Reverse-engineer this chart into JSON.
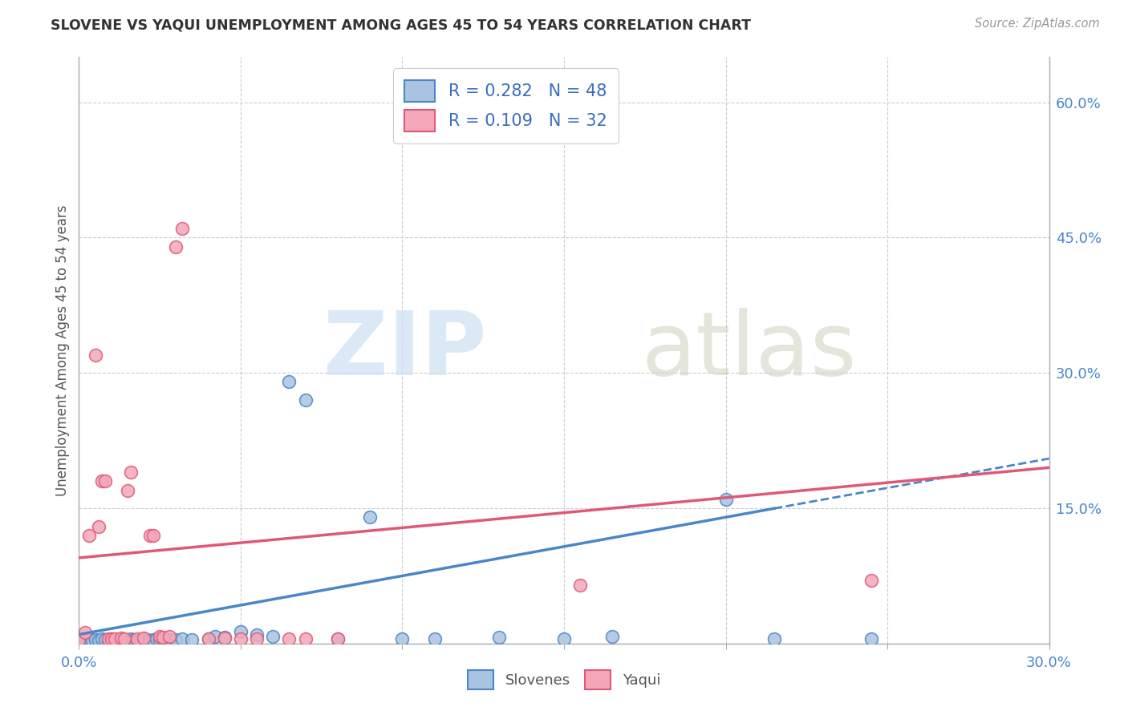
{
  "title": "SLOVENE VS YAQUI UNEMPLOYMENT AMONG AGES 45 TO 54 YEARS CORRELATION CHART",
  "source": "Source: ZipAtlas.com",
  "ylabel": "Unemployment Among Ages 45 to 54 years",
  "xlim": [
    0.0,
    0.3
  ],
  "ylim": [
    0.0,
    0.65
  ],
  "xticks": [
    0.0,
    0.05,
    0.1,
    0.15,
    0.2,
    0.25,
    0.3
  ],
  "xticklabels": [
    "0.0%",
    "",
    "",
    "",
    "",
    "",
    "30.0%"
  ],
  "right_yticks": [
    0.15,
    0.3,
    0.45,
    0.6
  ],
  "right_yticklabels": [
    "15.0%",
    "30.0%",
    "45.0%",
    "60.0%"
  ],
  "slovenes_R": 0.282,
  "slovenes_N": 48,
  "yaqui_R": 0.109,
  "yaqui_N": 32,
  "slovenes_color": "#a8c4e0",
  "yaqui_color": "#f4a7b9",
  "slovenes_line_color": "#4a86c8",
  "yaqui_line_color": "#e05878",
  "legend_R_color": "#3a6ec0",
  "background_color": "#ffffff",
  "slovenes_x": [
    0.0,
    0.002,
    0.003,
    0.004,
    0.005,
    0.006,
    0.007,
    0.008,
    0.009,
    0.01,
    0.011,
    0.012,
    0.013,
    0.014,
    0.015,
    0.016,
    0.017,
    0.018,
    0.019,
    0.02,
    0.021,
    0.022,
    0.023,
    0.024,
    0.025,
    0.026,
    0.028,
    0.03,
    0.032,
    0.035,
    0.04,
    0.042,
    0.045,
    0.05,
    0.055,
    0.06,
    0.065,
    0.07,
    0.08,
    0.09,
    0.1,
    0.11,
    0.13,
    0.15,
    0.165,
    0.2,
    0.215,
    0.245
  ],
  "slovenes_y": [
    0.004,
    0.004,
    0.005,
    0.003,
    0.004,
    0.003,
    0.005,
    0.004,
    0.003,
    0.005,
    0.004,
    0.004,
    0.005,
    0.003,
    0.004,
    0.005,
    0.004,
    0.003,
    0.004,
    0.005,
    0.004,
    0.003,
    0.004,
    0.005,
    0.004,
    0.004,
    0.004,
    0.004,
    0.005,
    0.004,
    0.005,
    0.008,
    0.007,
    0.013,
    0.01,
    0.008,
    0.29,
    0.27,
    0.005,
    0.14,
    0.005,
    0.005,
    0.007,
    0.005,
    0.008,
    0.16,
    0.005,
    0.005
  ],
  "yaqui_x": [
    0.0,
    0.002,
    0.003,
    0.005,
    0.006,
    0.007,
    0.008,
    0.009,
    0.01,
    0.011,
    0.013,
    0.014,
    0.015,
    0.016,
    0.018,
    0.02,
    0.022,
    0.023,
    0.025,
    0.026,
    0.028,
    0.03,
    0.032,
    0.04,
    0.045,
    0.05,
    0.055,
    0.065,
    0.07,
    0.08,
    0.155,
    0.245
  ],
  "yaqui_y": [
    0.004,
    0.012,
    0.12,
    0.32,
    0.13,
    0.18,
    0.18,
    0.005,
    0.005,
    0.005,
    0.006,
    0.005,
    0.17,
    0.19,
    0.005,
    0.006,
    0.12,
    0.12,
    0.008,
    0.007,
    0.008,
    0.44,
    0.46,
    0.005,
    0.006,
    0.005,
    0.005,
    0.005,
    0.005,
    0.005,
    0.065,
    0.07
  ],
  "slovene_line_x0": 0.0,
  "slovene_line_y0": 0.01,
  "slovene_line_x1": 0.3,
  "slovene_line_y1": 0.205,
  "yaqui_line_x0": 0.0,
  "yaqui_line_y0": 0.095,
  "yaqui_line_x1": 0.3,
  "yaqui_line_y1": 0.195
}
